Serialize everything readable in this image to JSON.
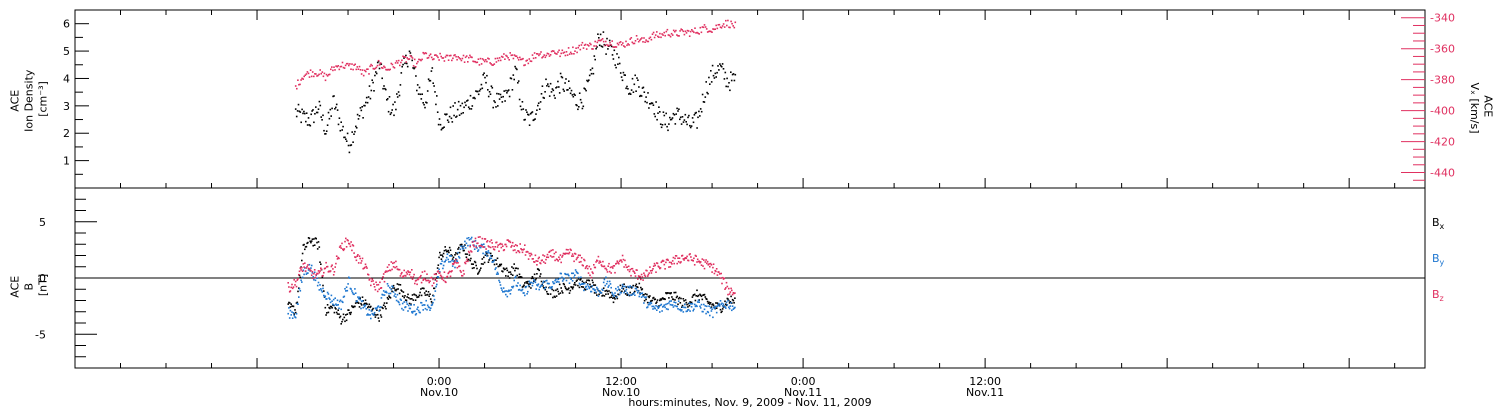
{
  "chart_data": [
    {
      "type": "scatter",
      "time_axis": {
        "ticks": [
          {
            "time": "0:00",
            "date": "Nov.10"
          },
          {
            "time": "12:00",
            "date": "Nov.10"
          },
          {
            "time": "0:00",
            "date": "Nov.11"
          },
          {
            "time": "12:00",
            "date": "Nov.11"
          }
        ],
        "xlabel": "hours:minutes, Nov.  9, 2009 - Nov. 11, 2009",
        "data_end_hours": 19.5
      },
      "left_axis": {
        "label_lines": [
          "ACE",
          "Ion Density",
          "[cm⁻³]"
        ],
        "ylim": [
          0,
          6.5
        ],
        "ticks": [
          "1",
          "2",
          "3",
          "4",
          "5",
          "6"
        ]
      },
      "right_axis": {
        "label_lines": [
          "ACE",
          "Vₓ [km/s]"
        ],
        "ylim": [
          -450,
          -335
        ],
        "ticks": [
          "-340",
          "-360",
          "-380",
          "-400",
          "-420",
          "-440"
        ],
        "color": "#e03060"
      },
      "series": [
        {
          "name": "",
          "axis": "left",
          "color": "#000000",
          "x_hours": [
            -9.5,
            -9,
            -8.5,
            -8,
            -7.5,
            -7,
            -6.5,
            -6,
            -5.5,
            -5,
            -4.5,
            -4,
            -3.5,
            -3,
            -2.5,
            -2,
            -1.5,
            -1,
            -0.5,
            0,
            0.5,
            1,
            1.5,
            2,
            2.5,
            3,
            3.5,
            4,
            4.5,
            5,
            5.5,
            6,
            6.5,
            7,
            7.5,
            8,
            8.5,
            9,
            9.5,
            10,
            10.5,
            11,
            11.5,
            12,
            12.5,
            13,
            13.5,
            14,
            14.5,
            15,
            15.5,
            16,
            16.5,
            17,
            17.5,
            18,
            18.5,
            19,
            19.5
          ],
          "values": [
            2.8,
            2.6,
            2.5,
            3.0,
            2.1,
            3.2,
            2.3,
            1.6,
            2.4,
            3.0,
            3.6,
            4.6,
            3.2,
            2.8,
            4.2,
            5.0,
            3.8,
            3.1,
            4.2,
            2.4,
            2.6,
            2.8,
            2.9,
            3.2,
            3.5,
            4.0,
            3.3,
            3.1,
            3.5,
            4.3,
            2.7,
            2.5,
            3.1,
            3.8,
            3.5,
            3.9,
            3.6,
            3.2,
            3.3,
            4.1,
            5.6,
            5.2,
            4.9,
            4.3,
            3.7,
            3.9,
            3.4,
            3.2,
            2.6,
            2.4,
            2.7,
            2.6,
            2.3,
            2.5,
            3.6,
            4.2,
            4.4,
            3.9,
            4.0
          ]
        },
        {
          "name": "",
          "axis": "right",
          "color": "#e03060",
          "x_hours": [
            -9.5,
            -9,
            -8.5,
            -8,
            -7.5,
            -7,
            -6.5,
            -6,
            -5.5,
            -5,
            -4.5,
            -4,
            -3.5,
            -3,
            -2.5,
            -2,
            -1.5,
            -1,
            -0.5,
            0,
            0.5,
            1,
            1.5,
            2,
            2.5,
            3,
            3.5,
            4,
            4.5,
            5,
            5.5,
            6,
            6.5,
            7,
            7.5,
            8,
            8.5,
            9,
            9.5,
            10,
            10.5,
            11,
            11.5,
            12,
            12.5,
            13,
            13.5,
            14,
            14.5,
            15,
            15.5,
            16,
            16.5,
            17,
            17.5,
            18,
            18.5,
            19,
            19.5
          ],
          "values": [
            -384,
            -377,
            -375,
            -375,
            -378,
            -372,
            -370,
            -371,
            -371,
            -376,
            -372,
            -369,
            -373,
            -370,
            -367,
            -366,
            -370,
            -363,
            -366,
            -365,
            -366,
            -364,
            -366,
            -366,
            -368,
            -368,
            -368,
            -366,
            -364,
            -366,
            -368,
            -366,
            -362,
            -364,
            -361,
            -363,
            -361,
            -360,
            -357,
            -358,
            -355,
            -355,
            -356,
            -357,
            -355,
            -353,
            -355,
            -351,
            -351,
            -349,
            -350,
            -349,
            -349,
            -348,
            -346,
            -347,
            -344,
            -343,
            -345
          ]
        }
      ]
    },
    {
      "type": "scatter",
      "left_axis": {
        "label_lines": [
          "ACE",
          "B",
          "[nT]"
        ],
        "ylim": [
          -8,
          8
        ],
        "ticks": [
          "-5",
          "0",
          "5"
        ]
      },
      "zero_line": true,
      "legend_position": "right",
      "series": [
        {
          "name": "Bx",
          "label_main": "B",
          "label_sub": "x",
          "color": "#000000",
          "x_hours": [
            -10,
            -9.5,
            -9,
            -8.5,
            -8,
            -7.5,
            -7,
            -6.5,
            -6,
            -5.5,
            -5,
            -4.5,
            -4,
            -3.5,
            -3,
            -2.5,
            -2,
            -1.5,
            -1,
            -0.5,
            0,
            0.5,
            1,
            1.5,
            2,
            2.5,
            3,
            3.5,
            4,
            4.5,
            5,
            5.5,
            6,
            6.5,
            7,
            7.5,
            8,
            8.5,
            9,
            9.5,
            10,
            10.5,
            11,
            11.5,
            12,
            12.5,
            13,
            13.5,
            14,
            14.5,
            15,
            15.5,
            16,
            16.5,
            17,
            17.5,
            18,
            18.5,
            19,
            19.5
          ],
          "values": [
            -2.5,
            -2.8,
            2.6,
            3.5,
            3.0,
            -2.8,
            -2.5,
            -3.6,
            -3.1,
            -2.2,
            -2.0,
            -2.8,
            -3.3,
            -2.2,
            -0.6,
            -1.0,
            -2.0,
            -1.4,
            -1.2,
            -1.8,
            2.0,
            2.6,
            1.8,
            3.0,
            1.6,
            0.8,
            2.0,
            1.8,
            1.2,
            0.4,
            1.0,
            -0.6,
            -0.4,
            0.6,
            -0.8,
            -1.3,
            -0.8,
            -0.9,
            -0.2,
            -0.6,
            -0.4,
            -1.6,
            -1.0,
            -1.8,
            -0.8,
            -1.2,
            -0.6,
            -1.5,
            -2.0,
            -2.1,
            -1.5,
            -1.6,
            -2.2,
            -2.0,
            -1.4,
            -1.9,
            -2.4,
            -2.6,
            -1.9,
            -2.0
          ]
        },
        {
          "name": "By",
          "label_main": "B",
          "label_sub": "y",
          "color": "#1f77d0",
          "x_hours": [
            -10,
            -9.5,
            -9,
            -8.5,
            -8,
            -7.5,
            -7,
            -6.5,
            -6,
            -5.5,
            -5,
            -4.5,
            -4,
            -3.5,
            -3,
            -2.5,
            -2,
            -1.5,
            -1,
            -0.5,
            0,
            0.5,
            1,
            1.5,
            2,
            2.5,
            3,
            3.5,
            4,
            4.5,
            5,
            5.5,
            6,
            6.5,
            7,
            7.5,
            8,
            8.5,
            9,
            9.5,
            10,
            10.5,
            11,
            11.5,
            12,
            12.5,
            13,
            13.5,
            14,
            14.5,
            15,
            15.5,
            16,
            16.5,
            17,
            17.5,
            18,
            18.5,
            19,
            19.5
          ],
          "values": [
            -3.0,
            -3.2,
            0.6,
            1.0,
            -0.6,
            -1.4,
            -2.0,
            -2.3,
            -0.2,
            -1.6,
            -2.6,
            -3.3,
            -2.5,
            -0.8,
            -1.2,
            -2.3,
            -2.6,
            -2.8,
            -2.2,
            -2.6,
            0.8,
            2.0,
            1.2,
            3.0,
            3.4,
            2.8,
            2.6,
            1.8,
            -0.6,
            -1.2,
            -0.2,
            -1.5,
            -0.3,
            -0.8,
            -0.4,
            -0.6,
            0.2,
            0.0,
            0.4,
            -0.6,
            -0.8,
            -1.2,
            -0.2,
            -1.4,
            -0.8,
            -1.1,
            -1.0,
            -1.9,
            -2.6,
            -2.7,
            -2.3,
            -2.1,
            -2.6,
            -2.5,
            -2.3,
            -2.7,
            -3.0,
            -2.4,
            -2.2,
            -2.6
          ]
        },
        {
          "name": "Bz",
          "label_main": "B",
          "label_sub": "z",
          "color": "#e03060",
          "x_hours": [
            -10,
            -9.5,
            -9,
            -8.5,
            -8,
            -7.5,
            -7,
            -6.5,
            -6,
            -5.5,
            -5,
            -4.5,
            -4,
            -3.5,
            -3,
            -2.5,
            -2,
            -1.5,
            -1,
            -0.5,
            0,
            0.5,
            1,
            1.5,
            2,
            2.5,
            3,
            3.5,
            4,
            4.5,
            5,
            5.5,
            6,
            6.5,
            7,
            7.5,
            8,
            8.5,
            9,
            9.5,
            10,
            10.5,
            11,
            11.5,
            12,
            12.5,
            13,
            13.5,
            14,
            14.5,
            15,
            15.5,
            16,
            16.5,
            17,
            17.5,
            18,
            18.5,
            19,
            19.5
          ],
          "values": [
            -0.8,
            -0.4,
            1.2,
            0.5,
            0.3,
            1.0,
            0.8,
            2.8,
            3.4,
            2.0,
            1.2,
            -0.4,
            -0.8,
            0.6,
            1.4,
            0.2,
            0.8,
            -0.4,
            0.4,
            -0.2,
            0.4,
            0.0,
            1.4,
            0.4,
            2.6,
            3.4,
            3.1,
            3.0,
            2.7,
            3.2,
            2.6,
            2.7,
            1.9,
            1.5,
            1.8,
            2.2,
            1.6,
            2.4,
            1.8,
            1.5,
            0.4,
            1.8,
            1.0,
            0.8,
            1.8,
            0.7,
            0.4,
            0.2,
            0.8,
            1.2,
            1.3,
            1.6,
            1.9,
            1.8,
            1.6,
            1.3,
            1.0,
            0.2,
            -1.0,
            -1.2
          ]
        }
      ]
    }
  ]
}
